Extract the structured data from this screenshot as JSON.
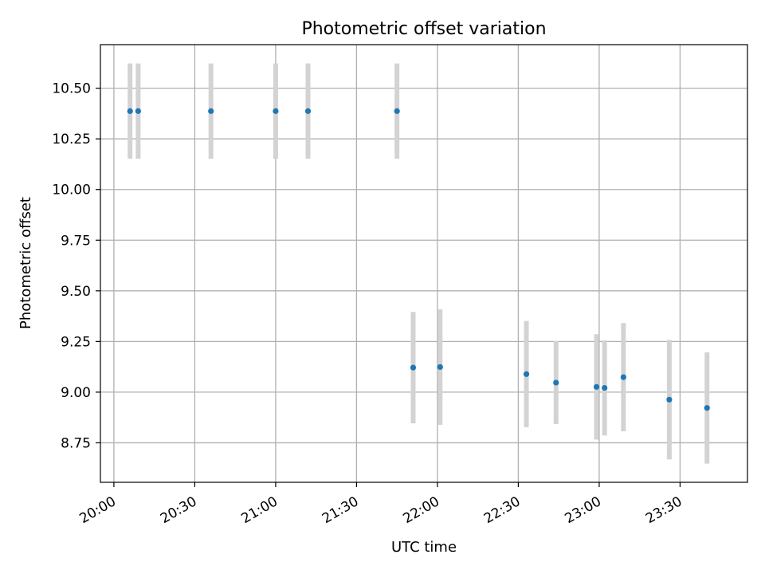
{
  "chart_data": {
    "type": "scatter",
    "title": "Photometric offset variation",
    "xlabel": "UTC time",
    "ylabel": "Photometric offset",
    "x_ticks": [
      "20:00",
      "20:30",
      "21:00",
      "21:30",
      "22:00",
      "22:30",
      "23:00",
      "23:30"
    ],
    "x_range": [
      "19:55",
      "23:55"
    ],
    "y_ticks": [
      "8.75",
      "9.00",
      "9.25",
      "9.50",
      "9.75",
      "10.00",
      "10.25",
      "10.50"
    ],
    "ylim": [
      8.555,
      10.715
    ],
    "grid": true,
    "colors": {
      "points": "#1f77b4",
      "errorbars": "#d3d3d3",
      "grid": "#b0b0b0"
    },
    "points": [
      {
        "x": "20:06",
        "y": 10.387,
        "err": 0.235
      },
      {
        "x": "20:09",
        "y": 10.387,
        "err": 0.235
      },
      {
        "x": "20:36",
        "y": 10.387,
        "err": 0.235
      },
      {
        "x": "21:00",
        "y": 10.387,
        "err": 0.235
      },
      {
        "x": "21:12",
        "y": 10.387,
        "err": 0.235
      },
      {
        "x": "21:45",
        "y": 10.387,
        "err": 0.235
      },
      {
        "x": "21:51",
        "y": 9.121,
        "err": 0.275
      },
      {
        "x": "22:01",
        "y": 9.124,
        "err": 0.285
      },
      {
        "x": "22:33",
        "y": 9.089,
        "err": 0.262
      },
      {
        "x": "22:44",
        "y": 9.047,
        "err": 0.205
      },
      {
        "x": "22:59",
        "y": 9.026,
        "err": 0.26
      },
      {
        "x": "23:02",
        "y": 9.021,
        "err": 0.235
      },
      {
        "x": "23:09",
        "y": 9.074,
        "err": 0.267
      },
      {
        "x": "23:26",
        "y": 8.963,
        "err": 0.295
      },
      {
        "x": "23:40",
        "y": 8.922,
        "err": 0.275
      }
    ]
  }
}
